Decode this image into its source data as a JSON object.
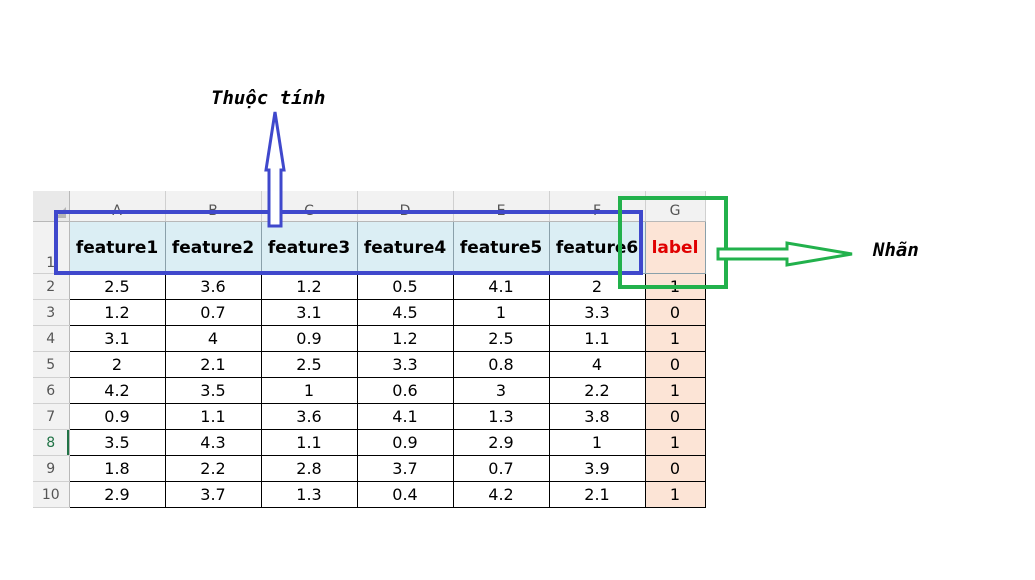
{
  "sheet": {
    "columns": [
      "A",
      "B",
      "C",
      "D",
      "E",
      "F",
      "G"
    ],
    "header_row_number": "1",
    "headers": [
      "feature1",
      "feature2",
      "feature3",
      "feature4",
      "feature5",
      "feature6",
      "label"
    ],
    "rows": [
      {
        "row": "2",
        "cells": [
          "2.5",
          "3.6",
          "1.2",
          "0.5",
          "4.1",
          "2",
          "1"
        ]
      },
      {
        "row": "3",
        "cells": [
          "1.2",
          "0.7",
          "3.1",
          "4.5",
          "1",
          "3.3",
          "0"
        ]
      },
      {
        "row": "4",
        "cells": [
          "3.1",
          "4",
          "0.9",
          "1.2",
          "2.5",
          "1.1",
          "1"
        ]
      },
      {
        "row": "5",
        "cells": [
          "2",
          "2.1",
          "2.5",
          "3.3",
          "0.8",
          "4",
          "0"
        ]
      },
      {
        "row": "6",
        "cells": [
          "4.2",
          "3.5",
          "1",
          "0.6",
          "3",
          "2.2",
          "1"
        ]
      },
      {
        "row": "7",
        "cells": [
          "0.9",
          "1.1",
          "3.6",
          "4.1",
          "1.3",
          "3.8",
          "0"
        ]
      },
      {
        "row": "8",
        "cells": [
          "3.5",
          "4.3",
          "1.1",
          "0.9",
          "2.9",
          "1",
          "1"
        ]
      },
      {
        "row": "9",
        "cells": [
          "1.8",
          "2.2",
          "2.8",
          "3.7",
          "0.7",
          "3.9",
          "0"
        ]
      },
      {
        "row": "10",
        "cells": [
          "2.9",
          "3.7",
          "1.3",
          "0.4",
          "4.2",
          "2.1",
          "1"
        ]
      }
    ],
    "selected_row": "8"
  },
  "annotations": {
    "features_label": "Thuộc tính",
    "label_label": "Nhãn"
  },
  "colors": {
    "features_box": "#3f48cc",
    "label_box": "#22b14c",
    "header_fill": "#dbeef4",
    "label_fill": "#fce4d6",
    "label_text": "#e00000"
  }
}
